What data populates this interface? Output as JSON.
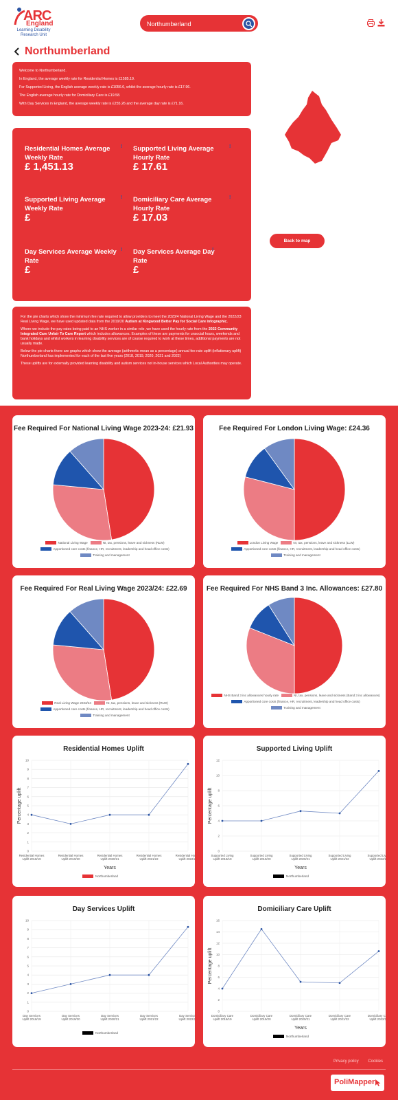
{
  "header": {
    "logo": {
      "arc": "ARC",
      "england": "England",
      "subtitle": "Learning Disability Research Unit"
    },
    "search_value": "Northumberland",
    "icons": {
      "search": "search-icon",
      "print": "print-icon",
      "download": "download-icon"
    }
  },
  "page_title": "Northumberland",
  "intro": [
    "Welcome to Northumberland.",
    "In England, the average weekly rate for Residential Homes is £1585.19.",
    "For Supported Living, the English average weekly rate is £1056.6, whilst the average hourly rate is £17.96.",
    "The English average hourly rate for Domiciliary Care is £19.58.",
    "With Day Services in England, the average weekly rate is £255.26 and the average day rate is £71.16."
  ],
  "rates": [
    {
      "label": "Residential Homes Average Weekly Rate",
      "value": "£ 1,451.13"
    },
    {
      "label": "Supported Living Average Hourly Rate",
      "value": "£ 17.61"
    },
    {
      "label": "Supported Living Average Weekly Rate",
      "value": "£"
    },
    {
      "label": "Domiciliary Care Average Hourly Rate",
      "value": "£ 17.03"
    },
    {
      "label": "Day Services Average Weekly Rate",
      "value": "£"
    },
    {
      "label": "Day Services Average Day Rate",
      "value": "£"
    }
  ],
  "back_to_map": "Back to map",
  "notes": {
    "p1_a": "For the pie charts which show the minimum fee rate required to allow providers to meet the 2023/4 National Living Wage and the 2022/23 Real Living Wage, we have used updated data from the 2019/20 ",
    "p1_b": "Autism at Kingwood Better Pay for Social Care infographic.",
    "p2_a": "Where we include the pay rates being paid to an NHS worker in a similar role, we have used the hourly rate from the ",
    "p2_b": "2022 Community Integrated Care Unfair To Care Report",
    "p2_c": " which includes allowances. Examples of these are payments for unsocial hours, weekends and bank holidays and whilst workers in learning disability services are of course required to work at these times, additional payments are not usually made.",
    "p3": "Below the pie charts there are graphs which show the average (arithmetic mean as a percentage) annual fee rate uplift (inflationary uplift) Northumberland has implemented for each of the last five years (2018, 2019, 2020, 2021 and 2022)",
    "p4": "These uplifts are for externally provided learning disability and autism services not in-house services which Local Authorities may operate."
  },
  "colors": {
    "slice1": "#e63336",
    "slice2": "#ec7c84",
    "slice3": "#1f55ad",
    "slice4": "#6f89c3"
  },
  "chart_data": [
    {
      "type": "pie",
      "title": "Fee Required For National Living Wage 2023-24: £21.93",
      "labels": [
        "National Living Wage",
        "NI, tax, pensions, leave and sickness (NLW)",
        "Apportioned core costs (finance, HR, recruitment, leadership and head office costs)",
        "Training and management"
      ],
      "values": [
        47.5,
        29,
        12,
        11.5
      ]
    },
    {
      "type": "pie",
      "title": "Fee Required For London Living Wage: £24.36",
      "labels": [
        "London Living Wage",
        "NI, tax, pensions, leave and sickness (LLW)",
        "Apportioned core costs (finance, HR, recruitment, leadership and head office costs)",
        "Training and management"
      ],
      "values": [
        50,
        29,
        11,
        10
      ]
    },
    {
      "type": "pie",
      "title": "Fee Required For Real Living Wage 2023/24: £22.69",
      "labels": [
        "Real Living Wage 2023/24",
        "NI, tax, pensions, leave and sickness (RLW)",
        "Apportioned core costs (finance, HR, recruitment, leadership and head office costs)",
        "Training and management"
      ],
      "values": [
        47.5,
        29,
        12,
        11.5
      ]
    },
    {
      "type": "pie",
      "title": "Fee Required For NHS Band 3 Inc. Allowances: £27.80",
      "labels": [
        "NHS Band 3 inc allowances hourly rate",
        "NI, tax, pensions, leave and sickness (Band 3 inc allowances)",
        "Apportioned core costs (finance, HR, recruitment, leadership and head office costs)",
        "Training and management"
      ],
      "values": [
        50,
        31,
        10,
        9
      ]
    },
    {
      "type": "line",
      "title": "Residential Homes Uplift",
      "categories": [
        "Residential Homes Uplift 2018/19",
        "Residential Homes Uplift 2019/20",
        "Residential Homes Uplift 2020/21",
        "Residential Homes Uplift 2021/22",
        "Residential Homes Uplift 2022/23"
      ],
      "series": [
        {
          "name": "Northumberland",
          "values": [
            4,
            3,
            4,
            4,
            9.6
          ]
        }
      ],
      "xlabel": "Years",
      "ylabel": "Percentage uplift",
      "ylim": [
        0,
        10
      ],
      "ystep": 1,
      "legend_color": "#e63336"
    },
    {
      "type": "line",
      "title": "Supported Living Uplift",
      "categories": [
        "Supported Living Uplift 2018/19",
        "Supported Living Uplift 2019/20",
        "Supported Living Uplift 2020/21",
        "Supported Living Uplift 2021/22",
        "Supported Living Uplift 2022/23"
      ],
      "series": [
        {
          "name": "Northumberland",
          "values": [
            4,
            4,
            5.3,
            5,
            10.6
          ]
        }
      ],
      "xlabel": "Years",
      "ylabel": "Percentage uplift",
      "ylim": [
        0,
        12
      ],
      "ystep": 2,
      "legend_color": "#000000"
    },
    {
      "type": "line",
      "title": "Day Services Uplift",
      "categories": [
        "Day Services Uplift 2018/19",
        "Day Services Uplift 2019/20",
        "Day Services Uplift 2020/21",
        "Day Services Uplift 2021/22",
        "Day Services Uplift 2022/23"
      ],
      "series": [
        {
          "name": "Northumberland",
          "values": [
            2,
            3,
            4,
            4,
            9.3
          ]
        }
      ],
      "xlabel": "",
      "ylabel": "",
      "ylim": [
        0,
        10
      ],
      "ystep": 1,
      "legend_color": "#000000"
    },
    {
      "type": "line",
      "title": "Domiciliary Care Uplift",
      "categories": [
        "Domiciliary Care Uplift 2018/19",
        "Domiciliary Care Uplift 2019/20",
        "Domiciliary Care Uplift 2020/21",
        "Domiciliary Care Uplift 2021/22",
        "Domiciliary Care Uplift 2022/23"
      ],
      "series": [
        {
          "name": "Northumberland",
          "values": [
            4,
            14.5,
            5.2,
            5,
            10.6
          ]
        }
      ],
      "xlabel": "Years",
      "ylabel": "Percentage uplift",
      "ylim": [
        0,
        16
      ],
      "ystep": 2,
      "legend_color": "#000000"
    }
  ],
  "footer": {
    "links": [
      "Privacy policy",
      "Cookies"
    ],
    "brand": "PoliMapper"
  }
}
